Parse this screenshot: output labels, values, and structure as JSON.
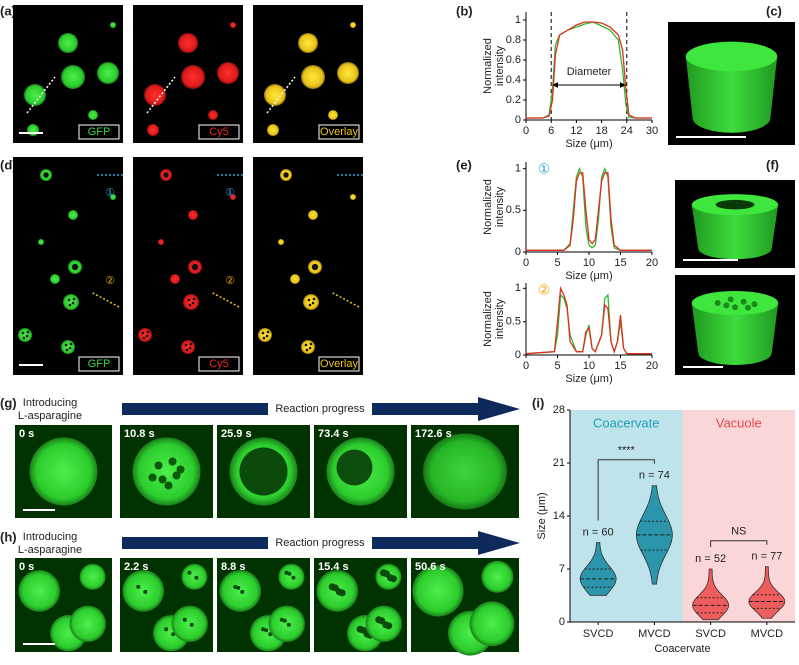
{
  "panel_labels": [
    "(a)",
    "(b)",
    "(c)",
    "(d)",
    "(e)",
    "(f)",
    "(g)",
    "(h)",
    "(i)"
  ],
  "channels": [
    {
      "name": "GFP",
      "color": "#33dd33"
    },
    {
      "name": "Cy5",
      "color": "#ee2222"
    },
    {
      "name": "Overlay",
      "color": "#e8c21a"
    }
  ],
  "time_series": [
    {
      "intro": [
        "Introducing",
        "L-asparagine"
      ],
      "progress": "Reaction progress",
      "times": [
        "0 s",
        "10.8 s",
        "25.9 s",
        "73.4 s",
        "172.6 s"
      ]
    },
    {
      "intro": [
        "Introducing",
        "L-asparagine"
      ],
      "progress": "Reaction progress",
      "times": [
        "0 s",
        "2.2 s",
        "8.8 s",
        "15.4 s",
        "50.6 s"
      ]
    }
  ],
  "chart_data": [
    {
      "type": "line",
      "xlabel": "Size (μm)",
      "ylabel": [
        "Normalized",
        "intensity"
      ],
      "x": [
        0,
        4,
        5.5,
        6.3,
        7,
        8,
        10,
        12,
        14,
        16,
        18,
        20,
        22,
        23,
        23.8,
        24.5,
        26,
        30
      ],
      "series": [
        {
          "color": "#2fb82f",
          "values": [
            0.02,
            0.02,
            0.05,
            0.3,
            0.75,
            0.85,
            0.9,
            0.93,
            0.96,
            0.98,
            0.94,
            0.9,
            0.8,
            0.5,
            0.15,
            0.03,
            0.02,
            0.02
          ]
        },
        {
          "color": "#e03020",
          "values": [
            0.02,
            0.02,
            0.04,
            0.2,
            0.65,
            0.85,
            0.9,
            0.95,
            0.98,
            0.98,
            0.97,
            0.93,
            0.85,
            0.7,
            0.3,
            0.05,
            0.02,
            0.02
          ]
        }
      ],
      "vlines": [
        6,
        24
      ],
      "annotation": "Diameter",
      "xlim": [
        0,
        30
      ],
      "xticks": [
        0,
        6,
        12,
        18,
        24,
        30
      ],
      "ylim": [
        0,
        1.08
      ],
      "yticks": [
        0,
        0.2,
        0.4,
        0.6,
        0.8,
        1
      ]
    },
    {
      "type": "line",
      "xlabel": "Size (μm)",
      "ylabel": [
        "Normalized",
        "intensity"
      ],
      "marker": "①",
      "marker_color": "#29a8d8",
      "x": [
        0,
        6,
        7,
        7.5,
        8,
        8.5,
        9,
        9.5,
        10,
        10.5,
        11,
        11.5,
        12,
        12.5,
        13,
        13.5,
        14,
        15,
        20
      ],
      "series": [
        {
          "color": "#2fb82f",
          "values": [
            0.02,
            0.02,
            0.1,
            0.5,
            0.9,
            1.0,
            0.9,
            0.3,
            0.08,
            0.05,
            0.08,
            0.4,
            0.9,
            1.0,
            0.9,
            0.3,
            0.05,
            0.02,
            0.02
          ]
        },
        {
          "color": "#e03020",
          "values": [
            0.02,
            0.02,
            0.08,
            0.4,
            0.85,
            0.95,
            0.95,
            0.5,
            0.15,
            0.1,
            0.15,
            0.5,
            0.85,
            0.95,
            0.95,
            0.4,
            0.08,
            0.02,
            0.02
          ]
        }
      ],
      "xlim": [
        0,
        20
      ],
      "xticks": [
        0,
        5,
        10,
        15,
        20
      ],
      "ylim": [
        0,
        1.08
      ],
      "yticks": [
        0,
        0.5,
        1
      ]
    },
    {
      "type": "line",
      "xlabel": "Size (μm)",
      "ylabel": [
        "Normalized",
        "intensity"
      ],
      "marker": "②",
      "marker_color": "#e8a800",
      "x": [
        0,
        4.5,
        5,
        5.5,
        6,
        6.5,
        7,
        8,
        9,
        9.5,
        10,
        10.5,
        11,
        12,
        12.5,
        13,
        13.5,
        14,
        14.5,
        15,
        15.5,
        16,
        20
      ],
      "series": [
        {
          "color": "#2fb82f",
          "values": [
            0.02,
            0.05,
            0.3,
            0.9,
            0.85,
            0.7,
            0.3,
            0.05,
            0.05,
            0.3,
            0.45,
            0.1,
            0.05,
            0.3,
            0.85,
            0.9,
            0.2,
            0.05,
            0.2,
            0.5,
            0.1,
            0.02,
            0.02
          ]
        },
        {
          "color": "#e03020",
          "values": [
            0.02,
            0.05,
            0.5,
            1.0,
            0.9,
            0.75,
            0.2,
            0.05,
            0.05,
            0.35,
            0.4,
            0.1,
            0.05,
            0.3,
            0.75,
            0.7,
            0.2,
            0.05,
            0.2,
            0.6,
            0.1,
            0.02,
            0.02
          ]
        }
      ],
      "xlim": [
        0,
        20
      ],
      "xticks": [
        0,
        5,
        10,
        15,
        20
      ],
      "ylim": [
        0,
        1.08
      ],
      "yticks": [
        0,
        0.5,
        1
      ]
    },
    {
      "type": "violin",
      "xlabel": "Coacervate",
      "ylabel": "Size (μm)",
      "categories": [
        "SVCD",
        "MVCD",
        "SVCD",
        "MVCD"
      ],
      "groups": [
        {
          "name": "Coacervate",
          "background": "#bfe3ea",
          "text_color": "#1ca2b8",
          "members": [
            0,
            1
          ]
        },
        {
          "name": "Vacuole",
          "background": "#fbd6d8",
          "text_color": "#e8484a",
          "members": [
            2,
            3
          ]
        }
      ],
      "violins": [
        {
          "min": 3.5,
          "q1": 4.6,
          "median": 5.7,
          "q3": 7,
          "max": 10.5,
          "n_label": "n = 60",
          "color": "#2b95ab"
        },
        {
          "min": 5,
          "q1": 9.5,
          "median": 11.5,
          "q3": 13.3,
          "max": 18,
          "n_label": "n = 74",
          "color": "#2b95ab"
        },
        {
          "min": 0.3,
          "q1": 1.2,
          "median": 2.2,
          "q3": 3.2,
          "max": 7,
          "n_label": "n = 52",
          "color": "#ee5d5d"
        },
        {
          "min": 0.5,
          "q1": 1.8,
          "median": 2.7,
          "q3": 3.6,
          "max": 7.3,
          "n_label": "n = 77",
          "color": "#ee5d5d"
        }
      ],
      "brackets": [
        {
          "label": "****",
          "from": 0,
          "to": 1
        },
        {
          "label": "NS",
          "from": 2,
          "to": 3
        }
      ],
      "ylim": [
        0,
        28
      ],
      "yticks": [
        0,
        7,
        14,
        21,
        28
      ]
    }
  ]
}
